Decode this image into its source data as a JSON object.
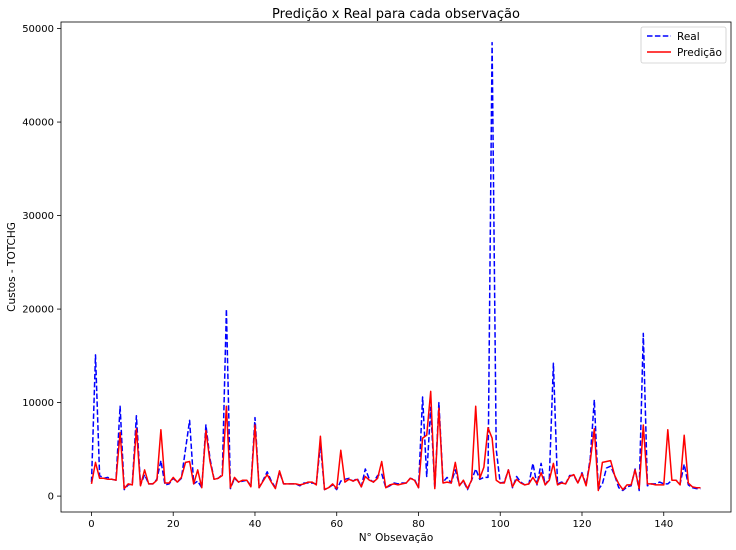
{
  "chart_data": {
    "type": "line",
    "title": "Predição x Real para cada observação",
    "xlabel": "N° Obsevação",
    "ylabel": "Custos - TOTCHG",
    "xlim": [
      -7.45,
      156.45
    ],
    "ylim": [
      -1700,
      50700
    ],
    "xticks": [
      0,
      20,
      40,
      60,
      80,
      100,
      120,
      140
    ],
    "yticks": [
      0,
      10000,
      20000,
      30000,
      40000,
      50000
    ],
    "grid": false,
    "legend_position": "top-right",
    "series": [
      {
        "name": "Real",
        "color": "#0000ff",
        "style": "dashed",
        "x": [
          0,
          1,
          2,
          3,
          4,
          5,
          6,
          7,
          8,
          9,
          10,
          11,
          12,
          13,
          14,
          15,
          16,
          17,
          18,
          19,
          20,
          21,
          22,
          23,
          24,
          25,
          26,
          27,
          28,
          29,
          30,
          31,
          32,
          33,
          34,
          35,
          36,
          37,
          38,
          39,
          40,
          41,
          42,
          43,
          44,
          45,
          46,
          47,
          48,
          49,
          50,
          51,
          52,
          53,
          54,
          55,
          56,
          57,
          58,
          59,
          60,
          61,
          62,
          63,
          64,
          65,
          66,
          67,
          68,
          69,
          70,
          71,
          72,
          73,
          74,
          75,
          76,
          77,
          78,
          79,
          80,
          81,
          82,
          83,
          84,
          85,
          86,
          87,
          88,
          89,
          90,
          91,
          92,
          93,
          94,
          95,
          96,
          97,
          98,
          99,
          100,
          101,
          102,
          103,
          104,
          105,
          106,
          107,
          108,
          109,
          110,
          111,
          112,
          113,
          114,
          115,
          116,
          117,
          118,
          119,
          120,
          121,
          122,
          123,
          124,
          125,
          126,
          127,
          128,
          129,
          130,
          131,
          132,
          133,
          134,
          135,
          136,
          137,
          138,
          139,
          140,
          141,
          142,
          143,
          144,
          145,
          146,
          147,
          148,
          149
        ],
        "values": [
          1500,
          15100,
          2200,
          1900,
          2000,
          1800,
          1700,
          9600,
          700,
          1200,
          1300,
          8600,
          1200,
          2300,
          1300,
          1300,
          1800,
          3800,
          1200,
          1300,
          1900,
          1500,
          1900,
          5000,
          8100,
          1300,
          1600,
          900,
          7600,
          4000,
          1800,
          1900,
          2300,
          20000,
          800,
          1900,
          1500,
          1600,
          1700,
          1100,
          8400,
          900,
          1700,
          2600,
          1600,
          900,
          2600,
          1300,
          1300,
          1300,
          1300,
          1100,
          1400,
          1400,
          1400,
          1300,
          5500,
          700,
          900,
          1200,
          700,
          1600,
          1800,
          1900,
          1600,
          1900,
          1000,
          2900,
          1800,
          1500,
          2200,
          2400,
          900,
          1100,
          1400,
          1300,
          1400,
          1400,
          1900,
          1800,
          900,
          10600,
          2100,
          9500,
          800,
          10000,
          1500,
          2000,
          1400,
          2800,
          1200,
          1600,
          700,
          1700,
          2900,
          1800,
          2000,
          2000,
          48500,
          5000,
          1400,
          1500,
          2800,
          900,
          2100,
          1500,
          1200,
          1300,
          3500,
          1200,
          3500,
          1200,
          1900,
          14200,
          1300,
          1500,
          1300,
          2200,
          2200,
          1400,
          2500,
          1200,
          4000,
          10300,
          700,
          1300,
          3000,
          3200,
          2200,
          900,
          600,
          1000,
          1100,
          2900,
          600,
          17400,
          1100,
          1300,
          1300,
          1500,
          1300,
          1300,
          1700,
          1700,
          1300,
          3400,
          1200,
          900,
          800,
          800
        ]
      },
      {
        "name": "Predição",
        "color": "#ff0000",
        "style": "solid",
        "x": [
          0,
          1,
          2,
          3,
          4,
          5,
          6,
          7,
          8,
          9,
          10,
          11,
          12,
          13,
          14,
          15,
          16,
          17,
          18,
          19,
          20,
          21,
          22,
          23,
          24,
          25,
          26,
          27,
          28,
          29,
          30,
          31,
          32,
          33,
          34,
          35,
          36,
          37,
          38,
          39,
          40,
          41,
          42,
          43,
          44,
          45,
          46,
          47,
          48,
          49,
          50,
          51,
          52,
          53,
          54,
          55,
          56,
          57,
          58,
          59,
          60,
          61,
          62,
          63,
          64,
          65,
          66,
          67,
          68,
          69,
          70,
          71,
          72,
          73,
          74,
          75,
          76,
          77,
          78,
          79,
          80,
          81,
          82,
          83,
          84,
          85,
          86,
          87,
          88,
          89,
          90,
          91,
          92,
          93,
          94,
          95,
          96,
          97,
          98,
          99,
          100,
          101,
          102,
          103,
          104,
          105,
          106,
          107,
          108,
          109,
          110,
          111,
          112,
          113,
          114,
          115,
          116,
          117,
          118,
          119,
          120,
          121,
          122,
          123,
          124,
          125,
          126,
          127,
          128,
          129,
          130,
          131,
          132,
          133,
          134,
          135,
          136,
          137,
          138,
          139,
          140,
          141,
          142,
          143,
          144,
          145,
          146,
          147,
          148,
          149
        ],
        "values": [
          1300,
          3600,
          1900,
          1900,
          1800,
          1800,
          1700,
          6800,
          800,
          1300,
          1200,
          7200,
          1100,
          2800,
          1300,
          1300,
          1700,
          7100,
          1400,
          1400,
          2000,
          1500,
          2000,
          3600,
          3700,
          1300,
          2800,
          900,
          7000,
          3700,
          1800,
          1900,
          2200,
          9600,
          900,
          2000,
          1500,
          1700,
          1700,
          1000,
          7600,
          900,
          1600,
          2300,
          1500,
          800,
          2700,
          1300,
          1300,
          1300,
          1300,
          1200,
          1300,
          1500,
          1500,
          1200,
          6400,
          700,
          900,
          1300,
          800,
          4900,
          1500,
          1800,
          1600,
          1800,
          1000,
          2100,
          1700,
          1500,
          1900,
          3700,
          900,
          1200,
          1300,
          1200,
          1300,
          1400,
          1900,
          1700,
          900,
          6200,
          6500,
          11200,
          800,
          9400,
          1400,
          1500,
          1400,
          3600,
          1100,
          1700,
          800,
          1700,
          9600,
          1900,
          3100,
          7300,
          6200,
          1700,
          1400,
          1400,
          2800,
          1000,
          1800,
          1400,
          1200,
          1300,
          2000,
          1300,
          2500,
          1200,
          1700,
          3500,
          1200,
          1400,
          1300,
          2100,
          2300,
          1400,
          2400,
          1100,
          3700,
          7200,
          600,
          3600,
          3700,
          3800,
          2200,
          1300,
          700,
          1200,
          1200,
          2800,
          800,
          7600,
          1300,
          1300,
          1200,
          1200,
          1200,
          7100,
          1700,
          1700,
          1200,
          6500,
          1400,
          1000,
          900,
          900
        ]
      }
    ]
  }
}
